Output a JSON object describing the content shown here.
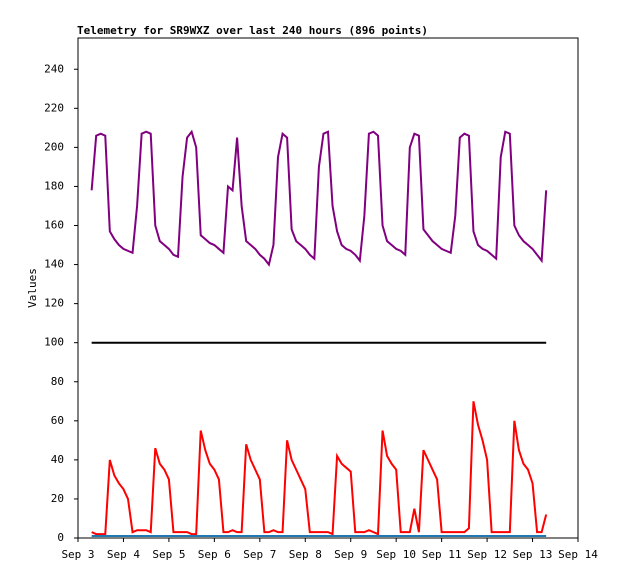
{
  "chart_data": {
    "type": "line",
    "title": "Telemetry for SR9WXZ over last 240 hours (896 points)",
    "y_label": "Values",
    "x": [
      3.3,
      3.4,
      3.5,
      3.6,
      3.7,
      3.8,
      3.9,
      4.0,
      4.1,
      4.2,
      4.3,
      4.4,
      4.5,
      4.6,
      4.7,
      4.8,
      4.9,
      5.0,
      5.1,
      5.2,
      5.3,
      5.4,
      5.5,
      5.6,
      5.7,
      5.8,
      5.9,
      6.0,
      6.1,
      6.2,
      6.3,
      6.4,
      6.5,
      6.6,
      6.7,
      6.8,
      6.9,
      7.0,
      7.1,
      7.2,
      7.3,
      7.4,
      7.5,
      7.6,
      7.7,
      7.8,
      7.9,
      8.0,
      8.1,
      8.2,
      8.3,
      8.4,
      8.5,
      8.6,
      8.7,
      8.8,
      8.9,
      9.0,
      9.1,
      9.2,
      9.3,
      9.4,
      9.5,
      9.6,
      9.7,
      9.8,
      9.9,
      10.0,
      10.1,
      10.2,
      10.3,
      10.4,
      10.5,
      10.6,
      10.7,
      10.8,
      10.9,
      11.0,
      11.1,
      11.2,
      11.3,
      11.4,
      11.5,
      11.6,
      11.7,
      11.8,
      11.9,
      12.0,
      12.1,
      12.2,
      12.3,
      12.4,
      12.5,
      12.6,
      12.7,
      12.8,
      12.9,
      13.0,
      13.1,
      13.2,
      13.3
    ],
    "series": [
      {
        "color": "#800080",
        "values": [
          178,
          206,
          207,
          206,
          157,
          153,
          150,
          148,
          147,
          146,
          170,
          207,
          208,
          207,
          160,
          152,
          150,
          148,
          145,
          144,
          185,
          205,
          208,
          200,
          155,
          153,
          151,
          150,
          148,
          146,
          180,
          178,
          205,
          170,
          152,
          150,
          148,
          145,
          143,
          140,
          150,
          195,
          207,
          205,
          158,
          152,
          150,
          148,
          145,
          143,
          190,
          207,
          208,
          170,
          157,
          150,
          148,
          147,
          145,
          142,
          165,
          207,
          208,
          206,
          160,
          152,
          150,
          148,
          147,
          145,
          200,
          207,
          206,
          158,
          155,
          152,
          150,
          148,
          147,
          146,
          165,
          205,
          207,
          206,
          157,
          150,
          148,
          147,
          145,
          143,
          195,
          208,
          207,
          160,
          155,
          152,
          150,
          148,
          145,
          142,
          178
        ]
      },
      {
        "color": "#000000",
        "x": [
          3.3,
          13.3
        ],
        "values": [
          100,
          100
        ]
      },
      {
        "color": "#ff0000",
        "values": [
          3,
          2,
          2,
          2,
          40,
          32,
          28,
          25,
          20,
          3,
          4,
          4,
          4,
          3,
          46,
          38,
          35,
          30,
          3,
          3,
          3,
          3,
          2,
          2,
          55,
          45,
          38,
          35,
          30,
          3,
          3,
          4,
          3,
          3,
          48,
          40,
          35,
          30,
          3,
          3,
          4,
          3,
          3,
          50,
          40,
          35,
          30,
          25,
          3,
          3,
          3,
          3,
          3,
          2,
          42,
          38,
          36,
          34,
          3,
          3,
          3,
          4,
          3,
          2,
          55,
          42,
          38,
          35,
          3,
          3,
          3,
          15,
          3,
          45,
          40,
          35,
          30,
          3,
          3,
          3,
          3,
          3,
          3,
          5,
          70,
          58,
          50,
          40,
          3,
          3,
          3,
          3,
          3,
          60,
          45,
          38,
          35,
          28,
          3,
          3,
          12
        ]
      },
      {
        "color": "#1f77b4",
        "x": [
          3.3,
          13.3
        ],
        "values": [
          1,
          1
        ]
      }
    ],
    "xlim": [
      3,
      14
    ],
    "xticks": [
      {
        "value": 3,
        "label": "Sep 3"
      },
      {
        "value": 4,
        "label": "Sep 4"
      },
      {
        "value": 5,
        "label": "Sep 5"
      },
      {
        "value": 6,
        "label": "Sep 6"
      },
      {
        "value": 7,
        "label": "Sep 7"
      },
      {
        "value": 8,
        "label": "Sep 8"
      },
      {
        "value": 9,
        "label": "Sep 9"
      },
      {
        "value": 10,
        "label": "Sep 10"
      },
      {
        "value": 11,
        "label": "Sep 11"
      },
      {
        "value": 12,
        "label": "Sep 12"
      },
      {
        "value": 13,
        "label": "Sep 13"
      },
      {
        "value": 14,
        "label": "Sep 14"
      }
    ],
    "ylim": [
      0,
      256
    ],
    "yticks": [
      0,
      20,
      40,
      60,
      80,
      100,
      120,
      140,
      160,
      180,
      200,
      220,
      240
    ],
    "grid": false
  }
}
